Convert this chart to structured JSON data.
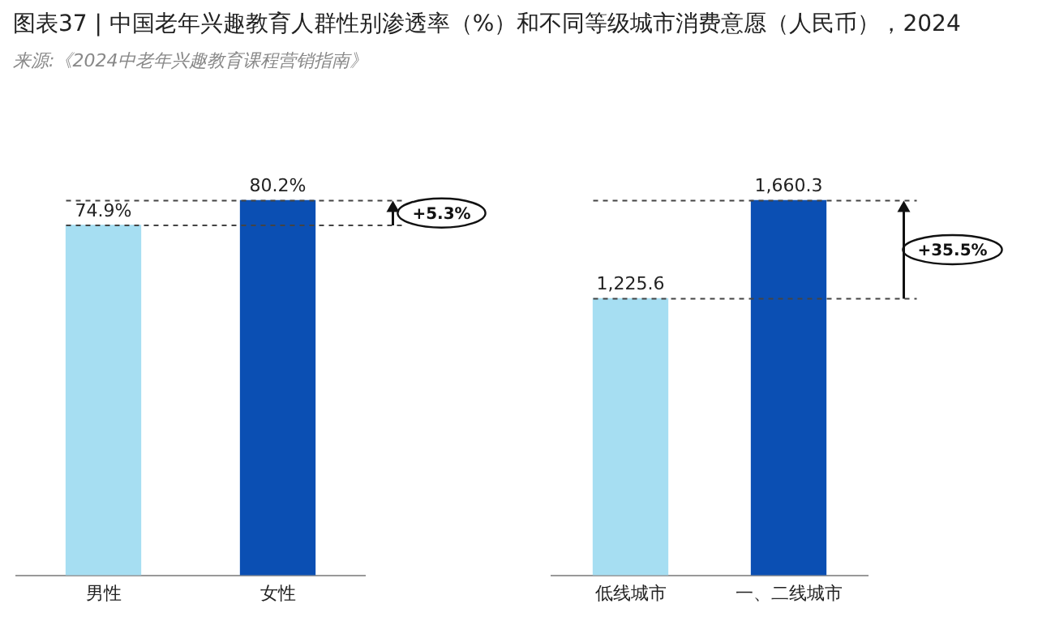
{
  "chart_data": [
    {
      "type": "bar",
      "title": "图表37 | 中国老年兴趣教育人群性别渗透率（%）和不同等级城市消费意愿（人民币），2024",
      "annotations": [
        "来源:《2024中老年兴趣教育课程营销指南》",
        "+5.3%"
      ],
      "categories": [
        "男性",
        "女性"
      ],
      "values": [
        74.9,
        80.2
      ],
      "colors": [
        "#a6def2",
        "#0b4fb3"
      ],
      "value_labels": [
        "74.9%",
        "80.2%"
      ],
      "tick_labels": "x",
      "grid": false,
      "legend": false,
      "ref_lines": [
        {
          "axis": "y",
          "value": 74.9,
          "line_style": "dashed",
          "color": "#444444"
        },
        {
          "axis": "y",
          "value": 80.2,
          "line_style": "dashed",
          "color": "#444444"
        }
      ]
    },
    {
      "type": "bar",
      "annotations": [
        "+35.5%"
      ],
      "categories": [
        "低线城市",
        "一、二线城市"
      ],
      "values": [
        1225.6,
        1660.3
      ],
      "colors": [
        "#a6def2",
        "#0b4fb3"
      ],
      "value_labels": [
        "1,225.6",
        "1,660.3"
      ],
      "tick_labels": "x",
      "grid": false,
      "legend": false,
      "ref_lines": [
        {
          "axis": "y",
          "value": 1225.6,
          "line_style": "dashed",
          "color": "#444444"
        },
        {
          "axis": "y",
          "value": 1660.3,
          "line_style": "dashed",
          "color": "#444444"
        }
      ]
    }
  ]
}
